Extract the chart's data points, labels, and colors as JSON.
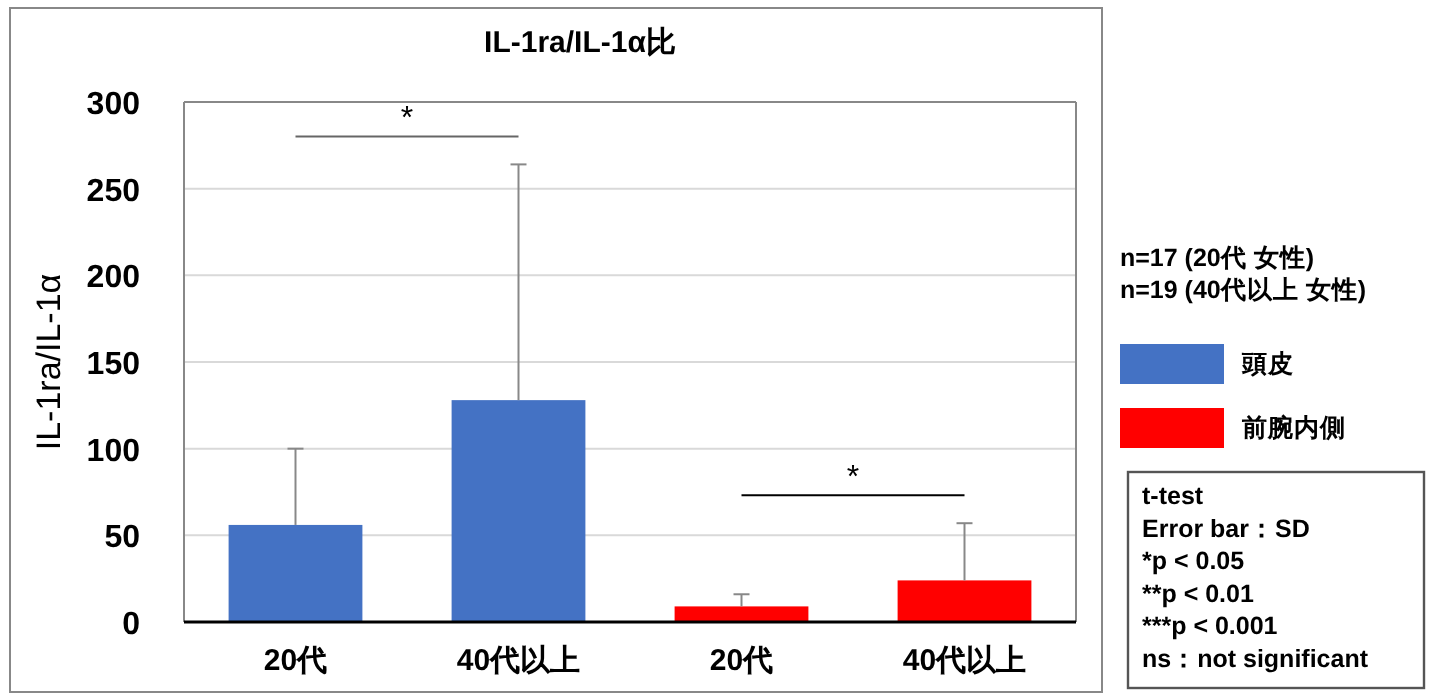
{
  "chart_data": {
    "type": "bar",
    "title": "IL-1ra/IL-1α比",
    "ylabel": "IL-1ra/IL-1α",
    "categories": [
      "20代",
      "40代以上",
      "20代",
      "40代以上"
    ],
    "series": [
      {
        "name": "頭皮",
        "color": "#4472c4",
        "values": [
          56,
          128,
          null,
          null
        ],
        "errors": [
          [
            56,
            100
          ],
          [
            128,
            264
          ],
          null,
          null
        ]
      },
      {
        "name": "前腕内側",
        "color": "#ff0000",
        "values": [
          null,
          null,
          9,
          24
        ],
        "errors": [
          null,
          null,
          [
            9,
            16
          ],
          [
            24,
            57
          ]
        ]
      }
    ],
    "ylim": [
      0,
      300
    ],
    "yticks": [
      0,
      50,
      100,
      150,
      200,
      250,
      300
    ],
    "grid": "y",
    "legend": "right",
    "annotations": [
      "*",
      "*",
      "n=17 (20代 女性)",
      "n=19 (40代以上 女性)",
      "t-test",
      "Error bar：SD",
      "*p < 0.05",
      "**p < 0.01",
      "***p < 0.001",
      "ns：not significant"
    ]
  }
}
